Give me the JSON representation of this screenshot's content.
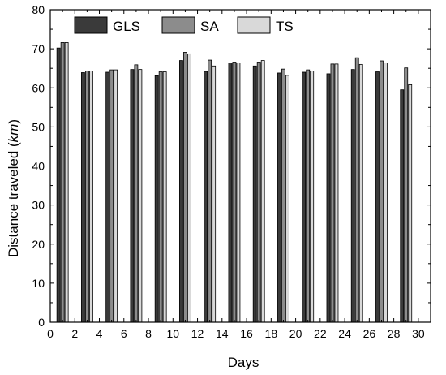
{
  "chart_data": {
    "type": "bar",
    "title": "",
    "xlabel": "Days",
    "ylabel_text": "Distance traveled (",
    "ylabel_unit": "km",
    "ylabel_close": ")",
    "xlim": [
      0,
      31
    ],
    "ylim": [
      0,
      80
    ],
    "x_ticks": [
      0,
      2,
      4,
      6,
      8,
      10,
      12,
      14,
      16,
      18,
      20,
      22,
      24,
      26,
      28,
      30
    ],
    "y_ticks": [
      0,
      10,
      20,
      30,
      40,
      50,
      60,
      70,
      80
    ],
    "grid": false,
    "legend_position": "top-left",
    "x": [
      1,
      3,
      5,
      7,
      9,
      11,
      13,
      15,
      17,
      19,
      21,
      23,
      25,
      27,
      29
    ],
    "series": [
      {
        "name": "GLS",
        "color": "#3a3a3a",
        "values": [
          70.2,
          63.9,
          64.0,
          64.7,
          63.1,
          67.0,
          64.2,
          66.4,
          65.6,
          63.8,
          64.0,
          63.6,
          64.7,
          64.1,
          59.5
        ]
      },
      {
        "name": "SA",
        "color": "#8c8c8c",
        "values": [
          71.6,
          64.3,
          64.6,
          65.9,
          64.1,
          69.1,
          67.1,
          66.6,
          66.6,
          64.8,
          64.6,
          66.1,
          67.7,
          66.9,
          65.1
        ]
      },
      {
        "name": "TS",
        "color": "#d9d9d9",
        "values": [
          71.6,
          64.3,
          64.6,
          64.7,
          64.1,
          68.7,
          65.6,
          66.4,
          67.0,
          63.2,
          64.3,
          66.1,
          66.0,
          66.4,
          60.8
        ]
      }
    ]
  }
}
